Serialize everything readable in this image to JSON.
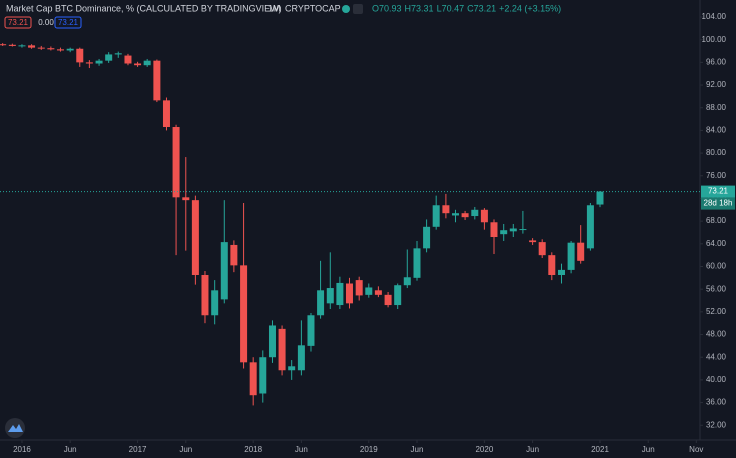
{
  "chart_data": {
    "type": "candlestick",
    "title": "Market Cap BTC Dominance, % (CALCULATED BY TRADINGVIEW)",
    "interval": "1M",
    "symbol": "CRYPTOCAP",
    "status_values": [
      "O70.93",
      "H73.31",
      "L70.47",
      "C73.21",
      "+2.24 (+3.15%)"
    ],
    "badges": [
      "73.21",
      "0.00",
      "73.21"
    ],
    "price_label": "73.21",
    "countdown": "28d 18h",
    "up_color": "#26a69a",
    "down_color": "#ef5350",
    "grid": false,
    "x": [
      2015.833,
      2015.917,
      2016,
      2016.083,
      2016.167,
      2016.25,
      2016.333,
      2016.417,
      2016.5,
      2016.583,
      2016.667,
      2016.75,
      2016.833,
      2016.917,
      2017,
      2017.083,
      2017.167,
      2017.25,
      2017.333,
      2017.417,
      2017.5,
      2017.583,
      2017.667,
      2017.75,
      2017.833,
      2017.917,
      2018,
      2018.083,
      2018.167,
      2018.25,
      2018.333,
      2018.417,
      2018.5,
      2018.583,
      2018.667,
      2018.75,
      2018.833,
      2018.917,
      2019,
      2019.083,
      2019.167,
      2019.25,
      2019.333,
      2019.417,
      2019.5,
      2019.583,
      2019.667,
      2019.75,
      2019.833,
      2019.917,
      2020,
      2020.083,
      2020.167,
      2020.25,
      2020.333,
      2020.417,
      2020.5,
      2020.583,
      2020.667,
      2020.75,
      2020.833,
      2020.917,
      2021
    ],
    "open": [
      99.2,
      99.1,
      98.9,
      99.0,
      98.6,
      98.5,
      98.3,
      98.1,
      98.4,
      96.0,
      95.8,
      96.3,
      97.4,
      97.2,
      95.8,
      95.5,
      96.3,
      89.3,
      84.6,
      72.2,
      71.7,
      58.5,
      51.4,
      54.2,
      63.8,
      60.2,
      43.1,
      37.6,
      44.0,
      49.0,
      41.7,
      41.7,
      46.0,
      51.4,
      53.5,
      53.2,
      57.0,
      57.6,
      55.0,
      55.8,
      55.0,
      53.2,
      56.7,
      58.0,
      63.2,
      67.0,
      70.8,
      69.0,
      69.4,
      68.9,
      70.0,
      67.8,
      65.7,
      66.2,
      66.5,
      64.6,
      64.3,
      62.0,
      58.5,
      59.4,
      64.2,
      63.2,
      70.93
    ],
    "high": [
      99.4,
      99.3,
      99.2,
      99.2,
      98.9,
      98.8,
      98.6,
      98.6,
      98.6,
      96.4,
      96.6,
      97.8,
      97.9,
      97.5,
      96.1,
      96.6,
      96.5,
      89.8,
      85.0,
      79.3,
      72.5,
      59.2,
      57.6,
      71.7,
      64.6,
      71.2,
      44.0,
      45.2,
      50.5,
      49.6,
      43.5,
      50.5,
      51.8,
      61.0,
      62.5,
      58.2,
      58.0,
      58.2,
      57.0,
      56.5,
      55.5,
      57.0,
      63.0,
      64.5,
      68.3,
      72.5,
      72.8,
      70.0,
      69.8,
      70.5,
      70.3,
      68.3,
      67.5,
      67.5,
      69.8,
      65.0,
      64.8,
      62.5,
      60.5,
      64.5,
      67.3,
      71.2,
      73.31
    ],
    "low": [
      98.9,
      98.8,
      98.6,
      98.4,
      98.2,
      98.1,
      97.9,
      97.8,
      95.2,
      95.0,
      95.4,
      95.9,
      96.8,
      95.5,
      95.2,
      95.2,
      89.0,
      84.0,
      62.0,
      62.8,
      56.8,
      50.0,
      49.8,
      53.5,
      59.0,
      42.0,
      35.5,
      36.0,
      43.0,
      40.8,
      40.0,
      40.8,
      45.0,
      50.8,
      52.5,
      52.5,
      52.6,
      54.0,
      54.5,
      54.6,
      52.8,
      52.5,
      56.2,
      57.5,
      62.5,
      66.5,
      68.5,
      67.8,
      68.2,
      68.3,
      66.5,
      62.2,
      64.5,
      65.2,
      65.8,
      63.8,
      61.5,
      57.6,
      57.0,
      58.8,
      60.5,
      62.8,
      70.47
    ],
    "close": [
      99.1,
      98.9,
      99.0,
      98.6,
      98.5,
      98.3,
      98.1,
      98.4,
      96.0,
      95.8,
      96.3,
      97.4,
      97.6,
      95.8,
      95.5,
      96.3,
      89.3,
      84.6,
      72.2,
      71.7,
      58.5,
      51.4,
      55.8,
      64.3,
      60.2,
      43.1,
      37.3,
      44.0,
      49.6,
      41.7,
      42.4,
      46.1,
      51.4,
      55.8,
      56.2,
      57.1,
      53.5,
      54.9,
      56.3,
      55.0,
      53.2,
      56.7,
      58.1,
      63.2,
      67.0,
      70.8,
      69.4,
      69.4,
      68.7,
      70.0,
      67.8,
      65.2,
      66.4,
      66.7,
      66.6,
      64.3,
      62.0,
      58.5,
      59.4,
      64.2,
      61.0,
      70.8,
      73.21
    ],
    "xlim": [
      2015.81,
      2021.865
    ],
    "xticks": [
      2016,
      {
        "value": 2016.417,
        "label": "Jun"
      },
      2017,
      {
        "value": 2017.417,
        "label": "Jun"
      },
      2018,
      {
        "value": 2018.417,
        "label": "Jun"
      },
      2019,
      {
        "value": 2019.417,
        "label": "Jun"
      },
      2020,
      {
        "value": 2020.417,
        "label": "Jun"
      },
      2021,
      {
        "value": 2021.417,
        "label": "Jun"
      },
      {
        "value": 2021.833,
        "label": "Nov"
      }
    ],
    "ylim": [
      29.4,
      107.0
    ],
    "yticks": [
      {
        "value": 104,
        "label": "104.00"
      },
      {
        "value": 100,
        "label": "100.00"
      },
      {
        "value": 96,
        "label": "96.00"
      },
      {
        "value": 92,
        "label": "92.00"
      },
      {
        "value": 88,
        "label": "88.00"
      },
      {
        "value": 84,
        "label": "84.00"
      },
      {
        "value": 80,
        "label": "80.00"
      },
      {
        "value": 76,
        "label": "76.00"
      },
      {
        "value": 72,
        "label": "72.00"
      },
      {
        "value": 68,
        "label": "68.00"
      },
      {
        "value": 64,
        "label": "64.00"
      },
      {
        "value": 60,
        "label": "60.00"
      },
      {
        "value": 56,
        "label": "56.00"
      },
      {
        "value": 52,
        "label": "52.00"
      },
      {
        "value": 48,
        "label": "48.00"
      },
      {
        "value": 44,
        "label": "44.00"
      },
      {
        "value": 40,
        "label": "40.00"
      },
      {
        "value": 36,
        "label": "36.00"
      },
      {
        "value": 32,
        "label": "32.00"
      }
    ]
  }
}
